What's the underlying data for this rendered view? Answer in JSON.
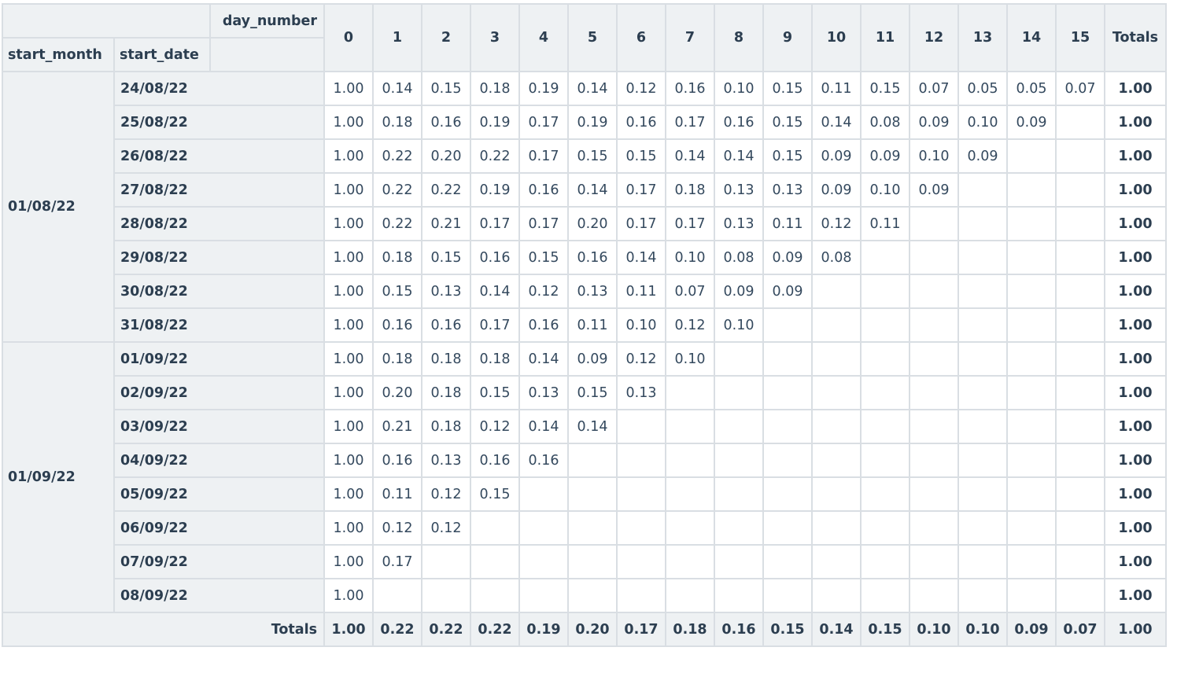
{
  "header": {
    "column_axis_label": "day_number",
    "row_axis_labels": [
      "start_month",
      "start_date"
    ],
    "day_columns": [
      "0",
      "1",
      "2",
      "3",
      "4",
      "5",
      "6",
      "7",
      "8",
      "9",
      "10",
      "11",
      "12",
      "13",
      "14",
      "15"
    ],
    "totals_label": "Totals"
  },
  "groups": [
    {
      "month": "01/08/22",
      "rows": [
        {
          "date": "24/08/22",
          "values": [
            "1.00",
            "0.14",
            "0.15",
            "0.18",
            "0.19",
            "0.14",
            "0.12",
            "0.16",
            "0.10",
            "0.15",
            "0.11",
            "0.15",
            "0.07",
            "0.05",
            "0.05",
            "0.07"
          ],
          "total": "1.00"
        },
        {
          "date": "25/08/22",
          "values": [
            "1.00",
            "0.18",
            "0.16",
            "0.19",
            "0.17",
            "0.19",
            "0.16",
            "0.17",
            "0.16",
            "0.15",
            "0.14",
            "0.08",
            "0.09",
            "0.10",
            "0.09",
            ""
          ],
          "total": "1.00"
        },
        {
          "date": "26/08/22",
          "values": [
            "1.00",
            "0.22",
            "0.20",
            "0.22",
            "0.17",
            "0.15",
            "0.15",
            "0.14",
            "0.14",
            "0.15",
            "0.09",
            "0.09",
            "0.10",
            "0.09",
            "",
            ""
          ],
          "total": "1.00"
        },
        {
          "date": "27/08/22",
          "values": [
            "1.00",
            "0.22",
            "0.22",
            "0.19",
            "0.16",
            "0.14",
            "0.17",
            "0.18",
            "0.13",
            "0.13",
            "0.09",
            "0.10",
            "0.09",
            "",
            "",
            ""
          ],
          "total": "1.00"
        },
        {
          "date": "28/08/22",
          "values": [
            "1.00",
            "0.22",
            "0.21",
            "0.17",
            "0.17",
            "0.20",
            "0.17",
            "0.17",
            "0.13",
            "0.11",
            "0.12",
            "0.11",
            "",
            "",
            "",
            ""
          ],
          "total": "1.00"
        },
        {
          "date": "29/08/22",
          "values": [
            "1.00",
            "0.18",
            "0.15",
            "0.16",
            "0.15",
            "0.16",
            "0.14",
            "0.10",
            "0.08",
            "0.09",
            "0.08",
            "",
            "",
            "",
            "",
            ""
          ],
          "total": "1.00"
        },
        {
          "date": "30/08/22",
          "values": [
            "1.00",
            "0.15",
            "0.13",
            "0.14",
            "0.12",
            "0.13",
            "0.11",
            "0.07",
            "0.09",
            "0.09",
            "",
            "",
            "",
            "",
            "",
            ""
          ],
          "total": "1.00"
        },
        {
          "date": "31/08/22",
          "values": [
            "1.00",
            "0.16",
            "0.16",
            "0.17",
            "0.16",
            "0.11",
            "0.10",
            "0.12",
            "0.10",
            "",
            "",
            "",
            "",
            "",
            "",
            ""
          ],
          "total": "1.00"
        }
      ]
    },
    {
      "month": "01/09/22",
      "rows": [
        {
          "date": "01/09/22",
          "values": [
            "1.00",
            "0.18",
            "0.18",
            "0.18",
            "0.14",
            "0.09",
            "0.12",
            "0.10",
            "",
            "",
            "",
            "",
            "",
            "",
            "",
            ""
          ],
          "total": "1.00"
        },
        {
          "date": "02/09/22",
          "values": [
            "1.00",
            "0.20",
            "0.18",
            "0.15",
            "0.13",
            "0.15",
            "0.13",
            "",
            "",
            "",
            "",
            "",
            "",
            "",
            "",
            ""
          ],
          "total": "1.00"
        },
        {
          "date": "03/09/22",
          "values": [
            "1.00",
            "0.21",
            "0.18",
            "0.12",
            "0.14",
            "0.14",
            "",
            "",
            "",
            "",
            "",
            "",
            "",
            "",
            "",
            ""
          ],
          "total": "1.00"
        },
        {
          "date": "04/09/22",
          "values": [
            "1.00",
            "0.16",
            "0.13",
            "0.16",
            "0.16",
            "",
            "",
            "",
            "",
            "",
            "",
            "",
            "",
            "",
            "",
            ""
          ],
          "total": "1.00"
        },
        {
          "date": "05/09/22",
          "values": [
            "1.00",
            "0.11",
            "0.12",
            "0.15",
            "",
            "",
            "",
            "",
            "",
            "",
            "",
            "",
            "",
            "",
            "",
            ""
          ],
          "total": "1.00"
        },
        {
          "date": "06/09/22",
          "values": [
            "1.00",
            "0.12",
            "0.12",
            "",
            "",
            "",
            "",
            "",
            "",
            "",
            "",
            "",
            "",
            "",
            "",
            ""
          ],
          "total": "1.00"
        },
        {
          "date": "07/09/22",
          "values": [
            "1.00",
            "0.17",
            "",
            "",
            "",
            "",
            "",
            "",
            "",
            "",
            "",
            "",
            "",
            "",
            "",
            ""
          ],
          "total": "1.00"
        },
        {
          "date": "08/09/22",
          "values": [
            "1.00",
            "",
            "",
            "",
            "",
            "",
            "",
            "",
            "",
            "",
            "",
            "",
            "",
            "",
            "",
            ""
          ],
          "total": "1.00"
        }
      ]
    }
  ],
  "totals_row": {
    "label": "Totals",
    "values": [
      "1.00",
      "0.22",
      "0.22",
      "0.22",
      "0.19",
      "0.20",
      "0.17",
      "0.18",
      "0.16",
      "0.15",
      "0.14",
      "0.15",
      "0.10",
      "0.10",
      "0.09",
      "0.07"
    ],
    "total": "1.00"
  },
  "colors": {
    "header_bg": "#eef1f3",
    "border": "#d9dee3",
    "text": "#2c3e50"
  }
}
